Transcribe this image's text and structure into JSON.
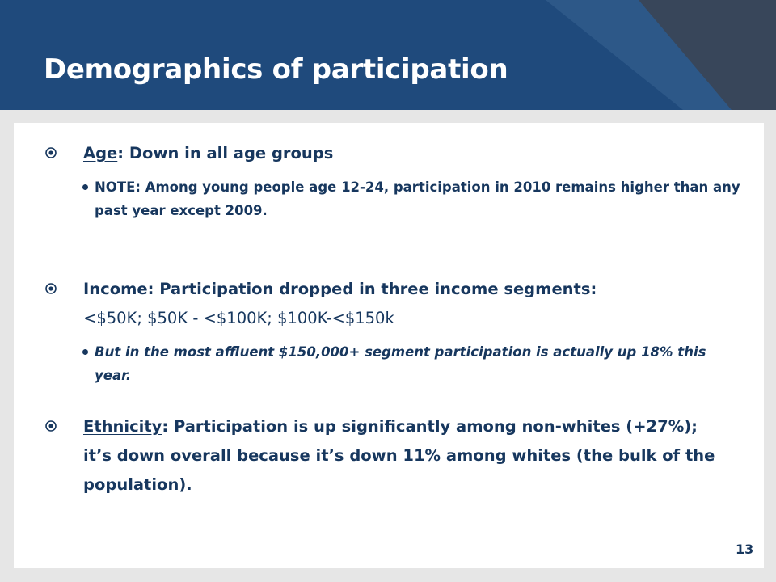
{
  "slide": {
    "title": "Demographics of participation",
    "page_number": "13",
    "colors": {
      "header": "#1f4a7c",
      "text": "#17375e",
      "background": "#e6e6e6",
      "content": "#ffffff"
    },
    "bullets": [
      {
        "label": "Age",
        "text": ":  Down in all age groups",
        "marker_icon": "circled-dot-icon",
        "sub": {
          "text": "NOTE:  Among young people age 12-24, participation in 2010 remains higher than any past year except 2009.",
          "italic": false
        }
      },
      {
        "label": "Income",
        "text": ":  Participation  dropped in three income segments:",
        "text_line2": "<$50K; $50K - <$100K; $100K-<$150k",
        "marker_icon": "circled-dot-icon",
        "sub": {
          "text": "But in the most affluent $150,000+ segment participation is actually up 18% this year.",
          "italic": true
        }
      },
      {
        "label": "Ethnicity",
        "text": ":  Participation  is up significantly among non-whites (+27%); it’s down  overall because it’s down 11% among whites (the bulk of the population).",
        "marker_icon": "circled-dot-icon"
      }
    ]
  }
}
